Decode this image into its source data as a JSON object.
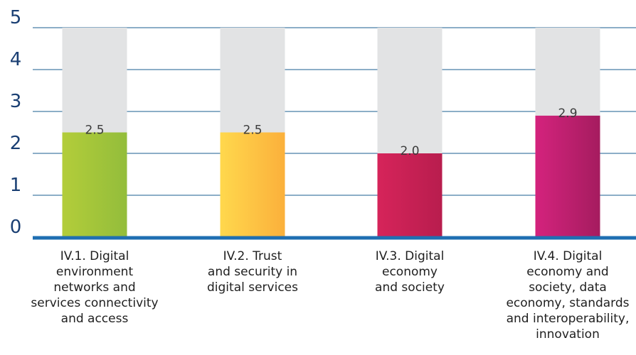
{
  "chart_data": {
    "type": "bar",
    "title": "",
    "xlabel": "",
    "ylabel": "",
    "ylim": [
      0,
      5
    ],
    "yticks": [
      "0",
      "1",
      "2",
      "3",
      "4",
      "5"
    ],
    "grid": true,
    "categories": [
      [
        "IV.1. Digital",
        "environment",
        "networks and",
        "services connectivity",
        "and access"
      ],
      [
        "IV.2. Trust",
        "and security in",
        "digital services"
      ],
      [
        "IV.3. Digital",
        "economy",
        "and society"
      ],
      [
        "IV.4. Digital",
        "economy and",
        "society, data",
        "economy, standards",
        "and interoperability,",
        "innovation"
      ]
    ],
    "values": [
      2.5,
      2.5,
      2.0,
      2.9
    ],
    "value_labels": [
      "2.5",
      "2.5",
      "2.0",
      "2.9"
    ],
    "max_value": 5,
    "background_bar_color": "#e2e3e4",
    "bar_gradients": [
      [
        "#b3cd3a",
        "#93bd3b"
      ],
      [
        "#ffd84d",
        "#fbb03b"
      ],
      [
        "#d6245a",
        "#b81d4e"
      ],
      [
        "#d4237d",
        "#a51c5f"
      ]
    ],
    "grid_color": "#1a5c8f",
    "baseline_color": "#1f6fb2"
  }
}
